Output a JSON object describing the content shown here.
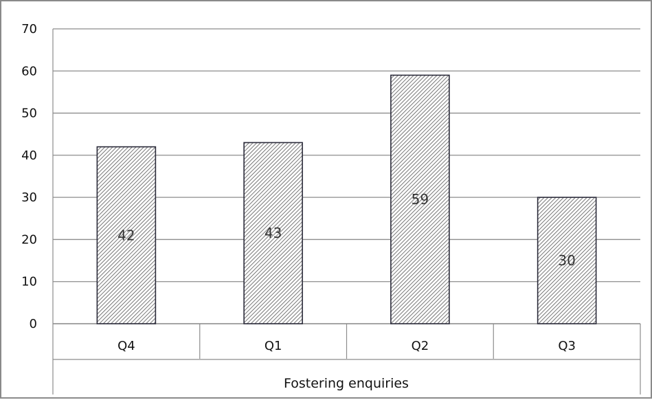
{
  "chart_data": {
    "type": "bar",
    "categories": [
      "Q4",
      "Q1",
      "Q2",
      "Q3"
    ],
    "values": [
      42,
      43,
      59,
      30
    ],
    "data_labels": [
      "42",
      "43",
      "59",
      "30"
    ],
    "xlabel": "Fostering enquiries",
    "ylabel": "",
    "ylim": [
      0,
      70
    ],
    "yticks": [
      0,
      10,
      20,
      30,
      40,
      50,
      60,
      70
    ],
    "grid": true,
    "legend": "none",
    "bar_fill": "hatched",
    "colors": {
      "bar_outline": "#2b2b3a",
      "hatch": "#555555",
      "grid": "#8c8c8c",
      "frame": "#8a8a8a"
    }
  }
}
